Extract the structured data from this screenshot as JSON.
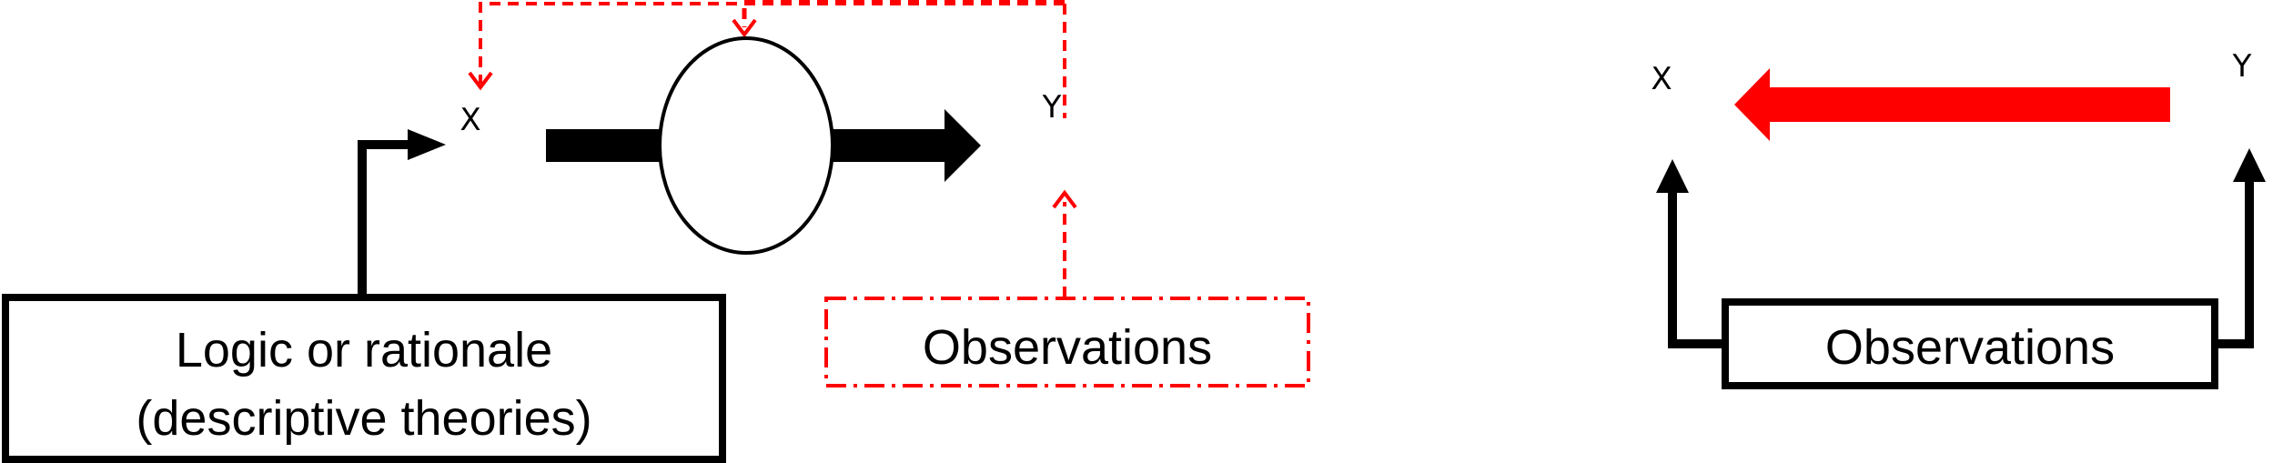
{
  "left_diagram": {
    "x_label": "X",
    "y_label": "Y",
    "logic_box": {
      "line1": "Logic or rationale",
      "line2": "(descriptive theories)"
    },
    "observations_box": "Observations"
  },
  "right_diagram": {
    "x_label": "X",
    "y_label": "Y",
    "observations_box": "Observations"
  },
  "colors": {
    "primary": "#000000",
    "accent": "#ff0000"
  }
}
